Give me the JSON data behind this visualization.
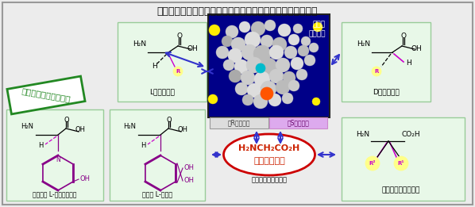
{
  "title": "丸岡触媒を用いる天然型および非天然型アミノ酸の大量合成",
  "bg_color": "#ececec",
  "border_color": "#999999",
  "box_bg": "#e8f8e8",
  "box_border": "#99cc99",
  "green_color": "#228822",
  "catalyst_bg": "#000088",
  "catalyst_text": "簡素化\n丸岡触媒",
  "l_amino_label": "L型アミノ酸",
  "d_amino_label": "D型アミノ酸",
  "antibiotic_label": "抗生物質 L-アザチロシン",
  "medicine_label": "医薬品 L-ドーパ",
  "glycine_line1": "H₂NCH₂CO₂H",
  "glycine_line2": "（グリシン）",
  "simplest_label": "最も簡単なアミノ酸",
  "dialkyl_label": "ジアルキルアミノ酸",
  "r_catalyst": "（R）型触媒",
  "s_catalyst": "（S）型触媒",
  "arrow_color": "#3333cc",
  "glycine_border": "#cc0000",
  "glycine_text_color": "#cc2200",
  "r_circle_color": "#ffff88",
  "ring_color": "#880088",
  "white": "#ffffff",
  "black": "#000000"
}
